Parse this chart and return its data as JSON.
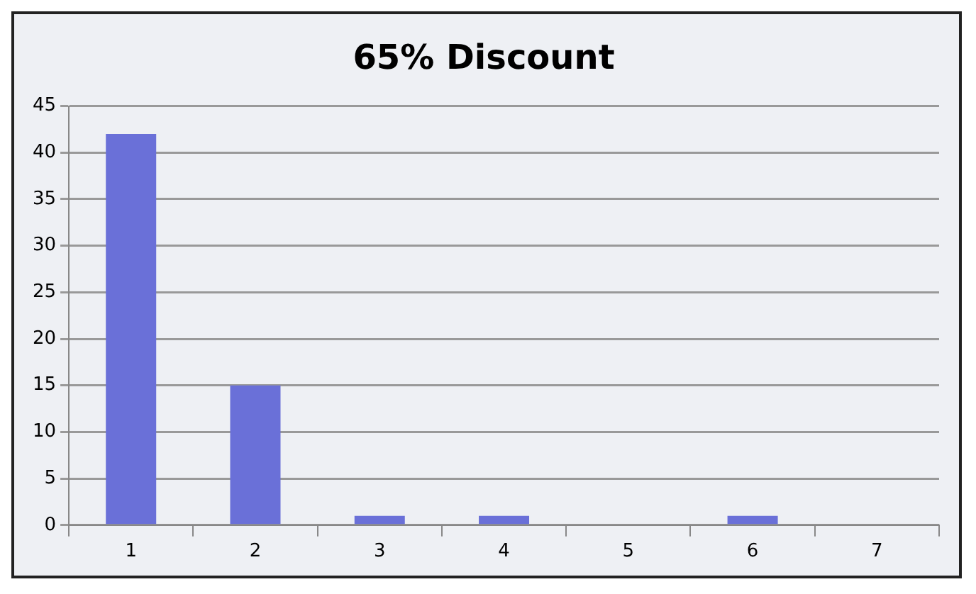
{
  "chart_data": {
    "type": "bar",
    "title": "65% Discount",
    "categories": [
      "1",
      "2",
      "3",
      "4",
      "5",
      "6",
      "7"
    ],
    "values": [
      42,
      15,
      1,
      1,
      0,
      1,
      0
    ],
    "color": "#6a70d8",
    "ylim": [
      0,
      45
    ],
    "yticks": [
      0,
      5,
      10,
      15,
      20,
      25,
      30,
      35,
      40,
      45
    ],
    "grid": "y",
    "legend": false
  }
}
